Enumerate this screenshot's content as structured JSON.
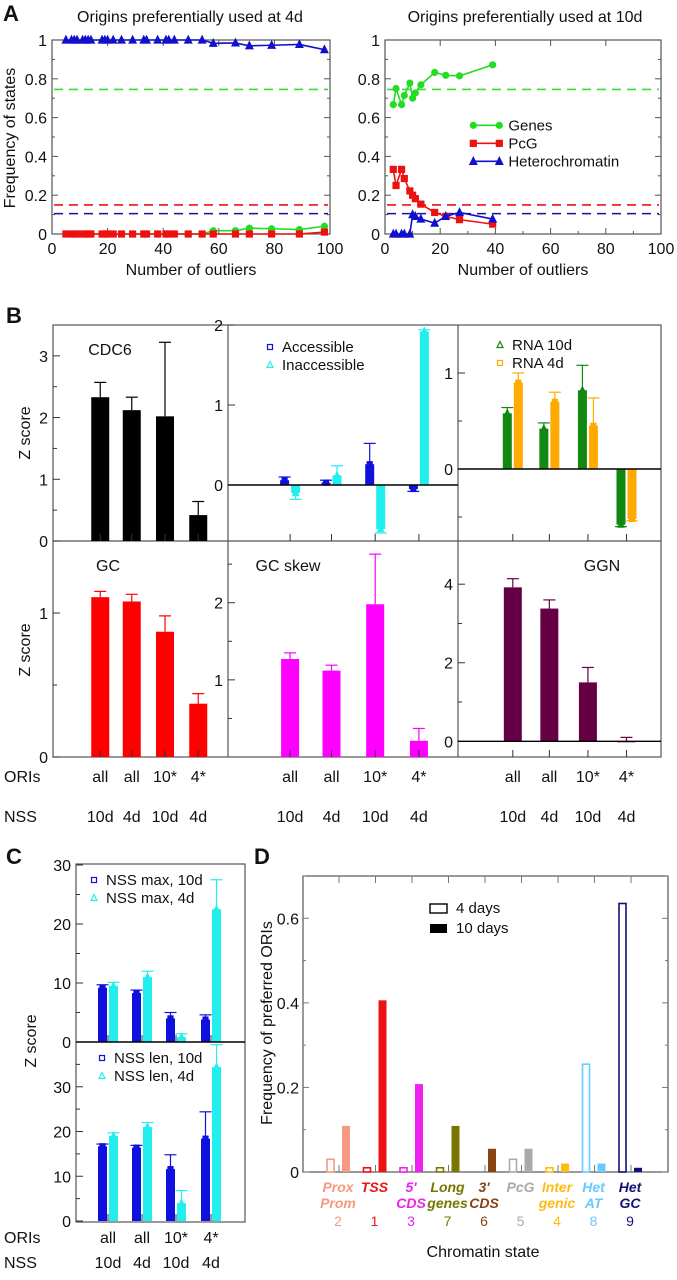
{
  "figure": {
    "panel_labels": [
      "A",
      "B",
      "C",
      "D"
    ]
  },
  "chart_data": [
    {
      "id": "A-left",
      "type": "line",
      "title": "Origins preferentially used at 4d",
      "xlabel": "Number of outliers",
      "ylabel": "Frequency of states",
      "xlim": [
        0,
        100
      ],
      "ylim": [
        0,
        1
      ],
      "xticks": [
        0,
        20,
        40,
        60,
        80,
        100
      ],
      "yticks": [
        0,
        0.2,
        0.4,
        0.6,
        0.8,
        1
      ],
      "ytick_labels": [
        "0",
        "0.2",
        "0.4",
        "0.6",
        "0.8",
        "1"
      ],
      "reference_lines": [
        {
          "name": "Genes baseline",
          "y": 0.745,
          "color": "#33dd33"
        },
        {
          "name": "PcG baseline",
          "y": 0.15,
          "color": "#ee1111"
        },
        {
          "name": "Heterochromatin baseline",
          "y": 0.105,
          "color": "#1111aa"
        }
      ],
      "series": [
        {
          "name": "Genes",
          "color": "#22dd22",
          "marker": "circle",
          "x": [
            5,
            7,
            8,
            9,
            11,
            12,
            13,
            14,
            18,
            19,
            20,
            22,
            25,
            29,
            33,
            34,
            38,
            41,
            42,
            44,
            49,
            54,
            58,
            66,
            71,
            79,
            89,
            98
          ],
          "y": [
            0,
            0,
            0,
            0,
            0,
            0,
            0,
            0,
            0,
            0,
            0,
            0,
            0,
            0,
            0,
            0,
            0,
            0,
            0,
            0,
            0,
            0,
            0.017,
            0.017,
            0.03,
            0.027,
            0.023,
            0.04
          ]
        },
        {
          "name": "PcG",
          "color": "#ee1111",
          "marker": "square",
          "x": [
            5,
            7,
            8,
            9,
            11,
            12,
            13,
            14,
            18,
            19,
            20,
            22,
            25,
            29,
            33,
            34,
            38,
            41,
            42,
            44,
            49,
            54,
            58,
            66,
            71,
            79,
            89,
            98
          ],
          "y": [
            0,
            0,
            0,
            0,
            0,
            0,
            0,
            0,
            0,
            0,
            0,
            0,
            0,
            0,
            0,
            0,
            0,
            0,
            0,
            0,
            0,
            0,
            0,
            0,
            0,
            0,
            0,
            0.01
          ]
        },
        {
          "name": "Heterochromatin",
          "color": "#1111cc",
          "marker": "triangle",
          "x": [
            5,
            7,
            8,
            9,
            11,
            12,
            13,
            14,
            18,
            19,
            20,
            22,
            25,
            29,
            33,
            34,
            38,
            41,
            42,
            44,
            49,
            54,
            58,
            66,
            71,
            79,
            89,
            98
          ],
          "y": [
            1,
            1,
            1,
            1,
            1,
            1,
            1,
            1,
            1,
            1,
            1,
            1,
            1,
            1,
            1,
            1,
            1,
            1,
            1,
            1,
            1,
            1,
            0.983,
            0.985,
            0.97,
            0.973,
            0.977,
            0.95
          ]
        }
      ]
    },
    {
      "id": "A-right",
      "type": "line",
      "title": "Origins preferentially used at 10d",
      "xlabel": "Number of outliers",
      "ylabel": "",
      "xlim": [
        0,
        100
      ],
      "ylim": [
        0,
        1
      ],
      "xticks": [
        0,
        20,
        40,
        60,
        80,
        100
      ],
      "yticks": [
        0,
        0.2,
        0.4,
        0.6,
        0.8,
        1
      ],
      "ytick_labels": [
        "0",
        "0.2",
        "0.4",
        "0.6",
        "0.8",
        "1"
      ],
      "legend": {
        "position": "center-right",
        "entries": [
          "Genes",
          "PcG",
          "Heterochromatin"
        ]
      },
      "reference_lines": [
        {
          "name": "Genes baseline",
          "y": 0.745,
          "color": "#33dd33"
        },
        {
          "name": "PcG baseline",
          "y": 0.15,
          "color": "#ee1111"
        },
        {
          "name": "Heterochromatin baseline",
          "y": 0.105,
          "color": "#1111aa"
        }
      ],
      "series": [
        {
          "name": "Genes",
          "color": "#22dd22",
          "marker": "circle",
          "x": [
            3,
            4,
            6,
            7,
            9,
            10,
            11,
            13,
            18,
            22,
            27,
            39
          ],
          "y": [
            0.667,
            0.75,
            0.667,
            0.714,
            0.778,
            0.7,
            0.727,
            0.769,
            0.833,
            0.818,
            0.815,
            0.872
          ]
        },
        {
          "name": "PcG",
          "color": "#ee1111",
          "marker": "square",
          "x": [
            3,
            4,
            6,
            7,
            9,
            10,
            11,
            13,
            18,
            22,
            27,
            39
          ],
          "y": [
            0.333,
            0.25,
            0.333,
            0.286,
            0.222,
            0.2,
            0.182,
            0.154,
            0.111,
            0.091,
            0.074,
            0.051
          ]
        },
        {
          "name": "Heterochromatin",
          "color": "#1111cc",
          "marker": "triangle",
          "x": [
            3,
            4,
            6,
            7,
            9,
            10,
            11,
            13,
            18,
            22,
            27,
            39
          ],
          "y": [
            0,
            0,
            0,
            0,
            0,
            0.1,
            0.091,
            0.077,
            0.056,
            0.091,
            0.111,
            0.077
          ]
        }
      ]
    },
    {
      "id": "B-CDC6",
      "type": "bar",
      "title": "CDC6",
      "ylabel": "Z score",
      "categories": [
        "all/10d",
        "all/4d",
        "10*/10d",
        "4*/4d"
      ],
      "ylim": [
        0,
        3.5
      ],
      "yticks": [
        0,
        1,
        2,
        3
      ],
      "series": [
        {
          "name": "CDC6",
          "color": "#000000",
          "values": [
            2.33,
            2.12,
            2.02,
            0.42
          ],
          "errors": [
            0.24,
            0.21,
            1.2,
            0.22
          ]
        }
      ]
    },
    {
      "id": "B-accessibility",
      "type": "bar",
      "title": "",
      "ylabel": "",
      "categories": [
        "all/10d",
        "all/4d",
        "10*/10d",
        "4*/4d"
      ],
      "ylim": [
        -0.7,
        2
      ],
      "yticks": [
        0,
        1,
        2
      ],
      "legend": {
        "position": "top-left",
        "entries": [
          "Accessible",
          "Inaccessible"
        ]
      },
      "series": [
        {
          "name": "Accessible",
          "color": "#1111dd",
          "marker": "square",
          "values": [
            0.06,
            0.03,
            0.26,
            -0.05
          ],
          "errors": [
            0.04,
            0.03,
            0.26,
            0.03
          ]
        },
        {
          "name": "Inaccessible",
          "color": "#22eeee",
          "marker": "triangle",
          "values": [
            -0.1,
            0.12,
            -0.55,
            1.92
          ],
          "errors": [
            0.08,
            0.12,
            0.05,
            0.02
          ]
        }
      ]
    },
    {
      "id": "B-RNA",
      "type": "bar",
      "title": "",
      "ylabel": "",
      "categories": [
        "all/10d",
        "all/4d",
        "10*/10d",
        "4*/4d"
      ],
      "ylim": [
        -0.75,
        1.5
      ],
      "yticks": [
        0,
        1
      ],
      "legend": {
        "position": "top-left",
        "entries": [
          "RNA 10d",
          "RNA 4d"
        ]
      },
      "series": [
        {
          "name": "RNA 10d",
          "color": "#118811",
          "marker": "triangle",
          "values": [
            0.58,
            0.42,
            0.82,
            -0.58
          ],
          "errors": [
            0.06,
            0.06,
            0.26,
            0.02
          ]
        },
        {
          "name": "RNA 4d",
          "color": "#ffaa00",
          "marker": "square",
          "values": [
            0.9,
            0.7,
            0.45,
            -0.52
          ],
          "errors": [
            0.1,
            0.1,
            0.29,
            0.02
          ]
        }
      ]
    },
    {
      "id": "B-GC",
      "type": "bar",
      "title": "GC",
      "ylabel": "Z score",
      "categories": [
        "all/10d",
        "all/4d",
        "10*/10d",
        "4*/4d"
      ],
      "ylim": [
        0,
        1.5
      ],
      "yticks": [
        0,
        1
      ],
      "series": [
        {
          "name": "GC",
          "color": "#ff0000",
          "values": [
            1.11,
            1.08,
            0.87,
            0.37
          ],
          "errors": [
            0.04,
            0.05,
            0.11,
            0.07
          ]
        }
      ]
    },
    {
      "id": "B-GCskew",
      "type": "bar",
      "title": "GC skew",
      "ylabel": "",
      "categories": [
        "all/10d",
        "all/4d",
        "10*/10d",
        "4*/4d"
      ],
      "ylim": [
        0,
        2.8
      ],
      "yticks": [
        1,
        2
      ],
      "series": [
        {
          "name": "GC skew",
          "color": "#ff00ff",
          "values": [
            1.27,
            1.12,
            1.98,
            0.21
          ],
          "errors": [
            0.08,
            0.07,
            0.65,
            0.16
          ]
        }
      ]
    },
    {
      "id": "B-GGN",
      "type": "bar",
      "title": "GGN",
      "ylabel": "",
      "categories": [
        "all/10d",
        "all/4d",
        "10*/10d",
        "4*/4d"
      ],
      "ylim": [
        -0.4,
        5.1
      ],
      "yticks": [
        0,
        2,
        4
      ],
      "series": [
        {
          "name": "GGN",
          "color": "#660044",
          "values": [
            3.92,
            3.38,
            1.5,
            0.0
          ],
          "errors": [
            0.22,
            0.22,
            0.38,
            0.1
          ]
        }
      ]
    },
    {
      "id": "C-max",
      "type": "bar",
      "title": "",
      "ylabel": "Z score",
      "categories": [
        "all/10d",
        "all/4d",
        "10*/10d",
        "4*/4d"
      ],
      "ylim": [
        0,
        30
      ],
      "yticks": [
        0,
        10,
        20,
        30
      ],
      "legend": {
        "position": "top-left",
        "entries": [
          "NSS max, 10d",
          "NSS max, 4d"
        ]
      },
      "series": [
        {
          "name": "NSS max, 10d",
          "color": "#1111dd",
          "marker": "square",
          "values": [
            9.2,
            8.3,
            4.0,
            3.8
          ],
          "errors": [
            0.5,
            0.5,
            1.0,
            0.8
          ]
        },
        {
          "name": "NSS max, 4d",
          "color": "#22eeee",
          "marker": "triangle",
          "values": [
            9.5,
            11.0,
            0.8,
            22.5
          ],
          "errors": [
            0.6,
            1.0,
            0.6,
            5.0
          ]
        }
      ]
    },
    {
      "id": "C-len",
      "type": "bar",
      "title": "",
      "ylabel": "",
      "categories": [
        "all/10d",
        "all/4d",
        "10*/10d",
        "4*/4d"
      ],
      "ylim": [
        0,
        40
      ],
      "yticks": [
        0,
        10,
        20,
        30
      ],
      "legend": {
        "position": "top-left",
        "entries": [
          "NSS len, 10d",
          "NSS len, 4d"
        ]
      },
      "series": [
        {
          "name": "NSS len, 10d",
          "color": "#1111dd",
          "marker": "square",
          "values": [
            16.7,
            16.4,
            11.6,
            18.4
          ],
          "errors": [
            0.5,
            0.5,
            3.2,
            6.0
          ]
        },
        {
          "name": "NSS len, 4d",
          "color": "#22eeee",
          "marker": "triangle",
          "values": [
            19.0,
            21.0,
            4.0,
            34.4
          ],
          "errors": [
            0.7,
            1.0,
            2.8,
            5.0
          ]
        }
      ]
    },
    {
      "id": "D",
      "type": "bar",
      "title": "",
      "xlabel": "Chromatin state",
      "ylabel": "Frequency of preferred ORIs",
      "ylim": [
        0,
        0.7
      ],
      "yticks": [
        0,
        0.2,
        0.4,
        0.6
      ],
      "ytick_labels": [
        "0",
        "0.2",
        "0.4",
        "0.6"
      ],
      "legend": {
        "position": "top-center",
        "entries": [
          "4 days",
          "10 days"
        ]
      },
      "categories": [
        {
          "line1": "Prox",
          "line2": "Prom",
          "num": "2",
          "color": "#f59a80"
        },
        {
          "line1": "TSS",
          "line2": "",
          "num": "1",
          "color": "#ee1111"
        },
        {
          "line1": "5'",
          "line2": "CDS",
          "num": "3",
          "color": "#ee22ee"
        },
        {
          "line1": "Long",
          "line2": "genes",
          "num": "7",
          "color": "#777700"
        },
        {
          "line1": "3'",
          "line2": "CDS",
          "num": "6",
          "color": "#884411"
        },
        {
          "line1": "PcG",
          "line2": "",
          "num": "5",
          "color": "#aaaaaa"
        },
        {
          "line1": "Inter",
          "line2": "genic",
          "num": "4",
          "color": "#ffbb11"
        },
        {
          "line1": "Het",
          "line2": "AT",
          "num": "8",
          "color": "#66ccff"
        },
        {
          "line1": "Het",
          "line2": "GC",
          "num": "9",
          "color": "#111177"
        }
      ],
      "series": [
        {
          "name": "4 days",
          "style": "outline",
          "values": [
            0.03,
            0.01,
            0.01,
            0.01,
            0.0,
            0.03,
            0.01,
            0.255,
            0.635
          ]
        },
        {
          "name": "10 days",
          "style": "filled",
          "values": [
            0.109,
            0.406,
            0.208,
            0.109,
            0.055,
            0.055,
            0.02,
            0.02,
            0.01
          ]
        }
      ]
    }
  ],
  "panelB": {
    "row_label_oris": "ORIs",
    "row_label_nss": "NSS",
    "oris": [
      "all",
      "all",
      "10*",
      "4*"
    ],
    "nss": [
      "10d",
      "4d",
      "10d",
      "4d"
    ]
  }
}
